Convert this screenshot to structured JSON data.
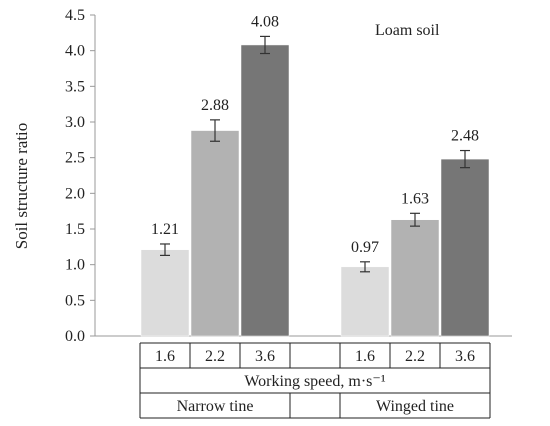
{
  "chart_data": {
    "type": "bar",
    "ylabel": "Soil structure ratio",
    "xlabel": "Working speed, m·s⁻¹",
    "annotation": "Loam soil",
    "ylim": [
      0,
      4.5
    ],
    "yticks": [
      "0.0",
      "0.5",
      "1.0",
      "1.5",
      "2.0",
      "2.5",
      "3.0",
      "3.5",
      "4.0",
      "4.5"
    ],
    "groups": [
      {
        "name": "Narrow tine",
        "categories": [
          "1.6",
          "2.2",
          "3.6"
        ],
        "values": [
          1.21,
          2.88,
          4.08
        ],
        "labels": [
          "1.21",
          "2.88",
          "4.08"
        ],
        "errors": [
          0.08,
          0.15,
          0.12
        ],
        "colors": [
          "#dcdcdc",
          "#b2b2b2",
          "#767676"
        ]
      },
      {
        "name": "Winged tine",
        "categories": [
          "1.6",
          "2.2",
          "3.6"
        ],
        "values": [
          0.97,
          1.63,
          2.48
        ],
        "labels": [
          "0.97",
          "1.63",
          "2.48"
        ],
        "errors": [
          0.07,
          0.09,
          0.12
        ],
        "colors": [
          "#dcdcdc",
          "#b2b2b2",
          "#767676"
        ]
      }
    ],
    "grid": false
  }
}
